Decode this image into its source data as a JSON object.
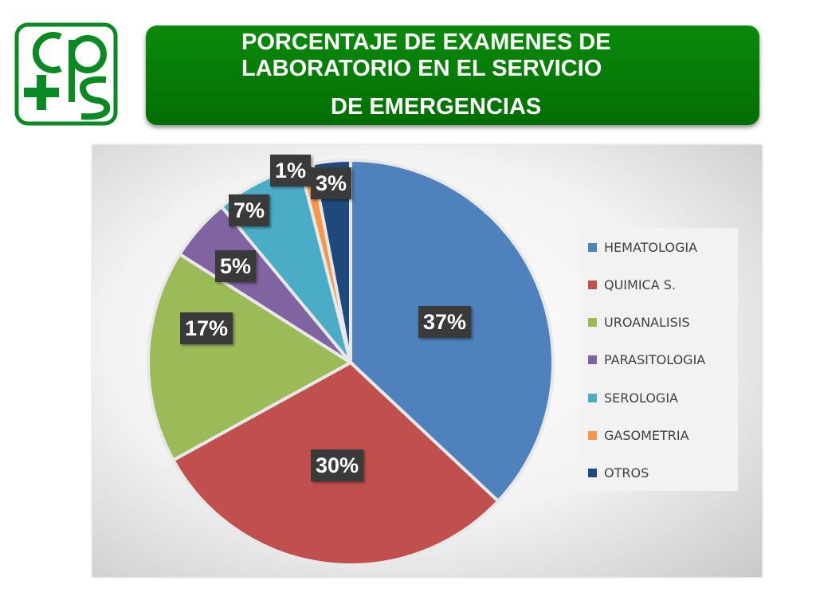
{
  "title": {
    "line1": "PORCENTAJE DE EXAMENES DE",
    "line2": "LABORATORIO EN EL SERVICIO",
    "line3": "DE EMERGENCIAS"
  },
  "chart_data": {
    "type": "pie",
    "categories": [
      "HEMATOLOGIA",
      "QUIMICA S.",
      "UROANALISIS",
      "PARASITOLOGIA",
      "SEROLOGIA",
      "GASOMETRIA",
      "OTROS"
    ],
    "values": [
      37,
      30,
      17,
      5,
      7,
      1,
      3
    ],
    "labels": [
      "37%",
      "30%",
      "17%",
      "5%",
      "7%",
      "1%",
      "3%"
    ],
    "colors": [
      "#4f81bd",
      "#c0504d",
      "#9bbb59",
      "#8064a2",
      "#4bacc6",
      "#f79646",
      "#1f497d"
    ],
    "legend_position": "right"
  }
}
